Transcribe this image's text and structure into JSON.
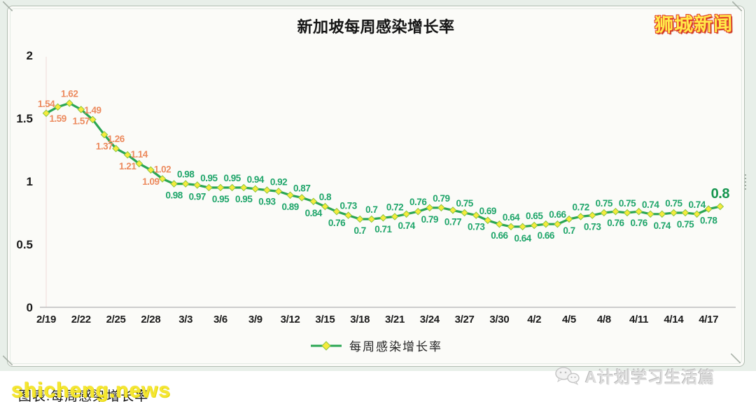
{
  "page": {
    "logo_text": "狮城新闻",
    "watermark_left": "shicheng.news",
    "watermark_left_caption": "图表:每周感染增长率",
    "watermark_right": "A计划学习生活篇"
  },
  "chart_data": {
    "type": "line",
    "title": "新加坡每周感染增长率",
    "xlabel": "",
    "ylabel": "",
    "ylim": [
      0,
      2
    ],
    "y_ticks": [
      "2",
      "1.5",
      "1",
      "0.5",
      "0"
    ],
    "grid": "off",
    "legend_position": "bottom-center",
    "x_tick_labels": [
      "2/19",
      "2/22",
      "2/25",
      "2/28",
      "3/3",
      "3/6",
      "3/9",
      "3/12",
      "3/15",
      "3/18",
      "3/21",
      "3/24",
      "3/27",
      "3/30",
      "4/2",
      "4/5",
      "4/8",
      "4/11",
      "4/14",
      "4/17"
    ],
    "points_per_tick": 3,
    "x_interval_days": 1,
    "series": [
      {
        "name": "每周感染增长率",
        "values": [
          1.54,
          1.59,
          1.62,
          1.57,
          1.49,
          1.37,
          1.26,
          1.21,
          1.14,
          1.09,
          1.02,
          0.98,
          0.98,
          0.97,
          0.95,
          0.95,
          0.95,
          0.95,
          0.94,
          0.93,
          0.92,
          0.89,
          0.87,
          0.84,
          0.8,
          0.76,
          0.73,
          0.7,
          0.7,
          0.71,
          0.72,
          0.74,
          0.76,
          0.79,
          0.79,
          0.77,
          0.75,
          0.73,
          0.69,
          0.66,
          0.64,
          0.64,
          0.65,
          0.66,
          0.66,
          0.7,
          0.72,
          0.73,
          0.75,
          0.76,
          0.75,
          0.76,
          0.74,
          0.74,
          0.75,
          0.75,
          0.74,
          0.78,
          0.8
        ]
      }
    ],
    "label_color_threshold": 1.0,
    "colors": {
      "line": "#2aa653",
      "marker_fill": "#f6ea3c",
      "marker_stroke": "#8cc63f",
      "label_high": "#ec8a5e",
      "label_low": "#1fa56a",
      "last_label": "#14954e",
      "axis": "#bdbdbd",
      "gridline": "rgba(225,175,175,0.45)"
    }
  }
}
